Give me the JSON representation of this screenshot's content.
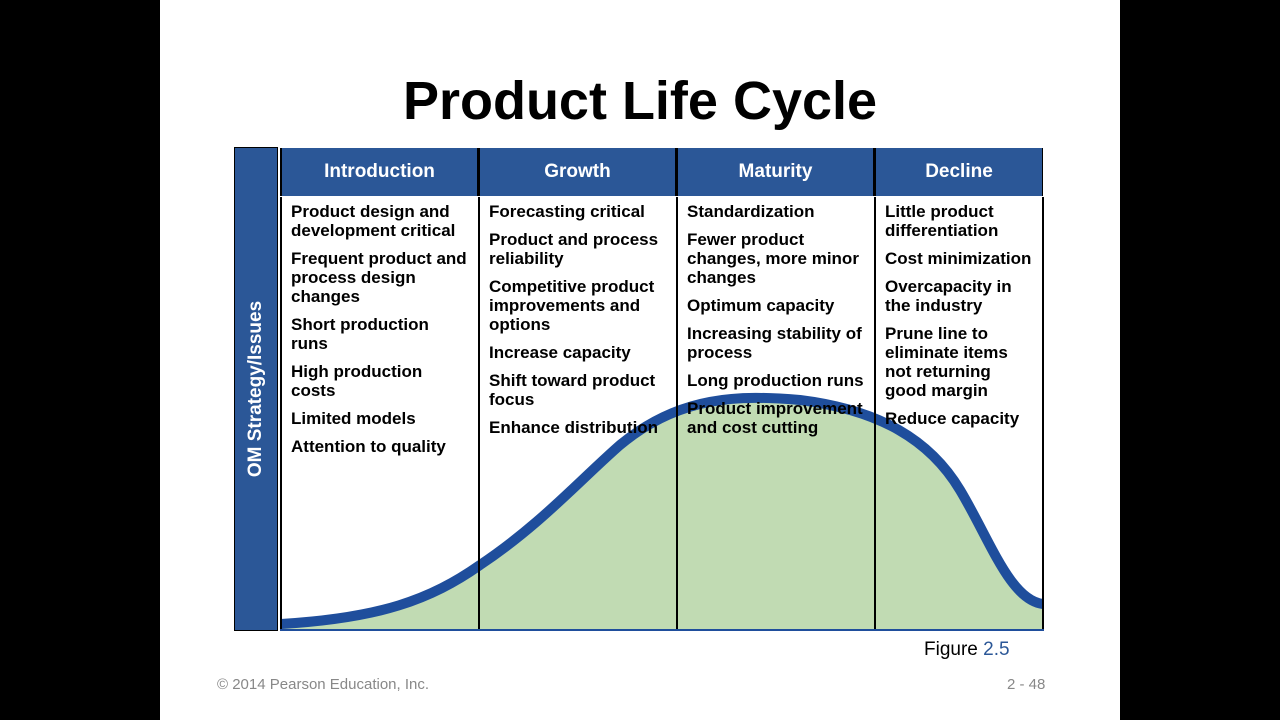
{
  "title": "Product Life Cycle",
  "side_label": "OM Strategy/Issues",
  "stages": [
    {
      "name": "Introduction",
      "items": [
        "Product design and development critical",
        "Frequent product and process design changes",
        "Short production runs",
        "High production costs",
        "Limited models",
        "Attention to quality"
      ]
    },
    {
      "name": "Growth",
      "items": [
        "Forecasting critical",
        "Product and process reliability",
        "Competitive product improvements and options",
        "Increase capacity",
        "Shift toward product focus",
        "Enhance distribution"
      ]
    },
    {
      "name": "Maturity",
      "items": [
        "Standardization",
        "Fewer product changes, more minor changes",
        "Optimum capacity",
        "Increasing stability of process",
        "Long production runs",
        "Product improvement and cost cutting"
      ]
    },
    {
      "name": "Decline",
      "items": [
        "Little product differentiation",
        "Cost minimization",
        "Overcapacity in the industry",
        "Prune line to eliminate items not returning good margin",
        "Reduce capacity"
      ]
    }
  ],
  "figure": {
    "label": "Figure",
    "number": "2.5"
  },
  "footer": {
    "copyright": "© 2014 Pearson Education, Inc.",
    "page": "2 - 48"
  }
}
